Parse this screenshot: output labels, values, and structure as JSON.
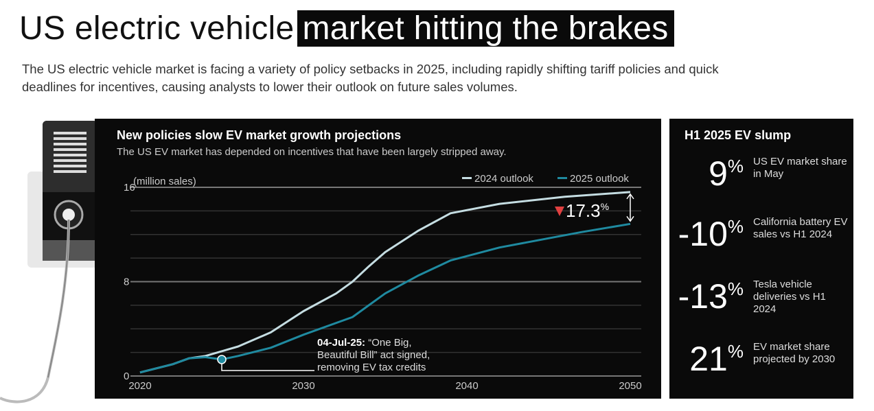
{
  "title": {
    "plain": "US electric vehicle",
    "highlight": "market hitting the brakes"
  },
  "subtitle": "The US electric vehicle market is facing a variety of policy setbacks in 2025, including rapidly shifting tariff policies and quick deadlines for incentives, causing analysts to lower their outlook on future sales volumes.",
  "chart_data": {
    "type": "line",
    "title": "New policies slow EV market growth projections",
    "subtitle": "The US EV market has depended on incentives that have been largely stripped away.",
    "ylabel": "(million sales)",
    "ylim": [
      0,
      16
    ],
    "xlim": [
      2020,
      2050
    ],
    "yticks": [
      "0",
      "8",
      "16"
    ],
    "xticks": [
      "2020",
      "2030",
      "2040",
      "2050"
    ],
    "grid": true,
    "legend_position": "top-right",
    "series": [
      {
        "name": "2024 outlook",
        "color": "#c5dde2",
        "x": [
          2020,
          2022,
          2023,
          2024,
          2026,
          2028,
          2030,
          2032,
          2033,
          2034,
          2035,
          2037,
          2039,
          2042,
          2046,
          2050
        ],
        "y": [
          0.3,
          1.0,
          1.5,
          1.7,
          2.5,
          3.7,
          5.5,
          7.0,
          8.0,
          9.3,
          10.5,
          12.3,
          13.8,
          14.6,
          15.2,
          15.6
        ]
      },
      {
        "name": "2025 outlook",
        "color": "#1f8aa0",
        "x": [
          2020,
          2022,
          2023,
          2024,
          2025,
          2026,
          2028,
          2030,
          2033,
          2034,
          2035,
          2037,
          2039,
          2042,
          2047,
          2050
        ],
        "y": [
          0.3,
          1.0,
          1.5,
          1.6,
          1.4,
          1.7,
          2.4,
          3.5,
          5.0,
          6.0,
          7.0,
          8.5,
          9.8,
          10.9,
          12.2,
          12.9
        ]
      }
    ],
    "annotations": {
      "gap": "17.3",
      "gap_suffix": "%",
      "event_date": "04-Jul-25:",
      "event_x": 2025,
      "event_line1": " “One Big,",
      "event_line2": "Beautiful Bill” act signed,",
      "event_line3": "removing EV tax credits",
      "down_color": "#e04040"
    }
  },
  "stats": {
    "title": "H1 2025 EV slump",
    "items": [
      {
        "value": "9",
        "unit": "%",
        "label": "US EV market share in May"
      },
      {
        "value": "-10",
        "unit": "%",
        "label": "California battery EV sales vs H1 2024"
      },
      {
        "value": "-13",
        "unit": "%",
        "label": "Tesla vehicle deliveries vs H1 2024"
      },
      {
        "value": "21",
        "unit": "%",
        "label": "EV market share projected by 2030"
      }
    ]
  }
}
